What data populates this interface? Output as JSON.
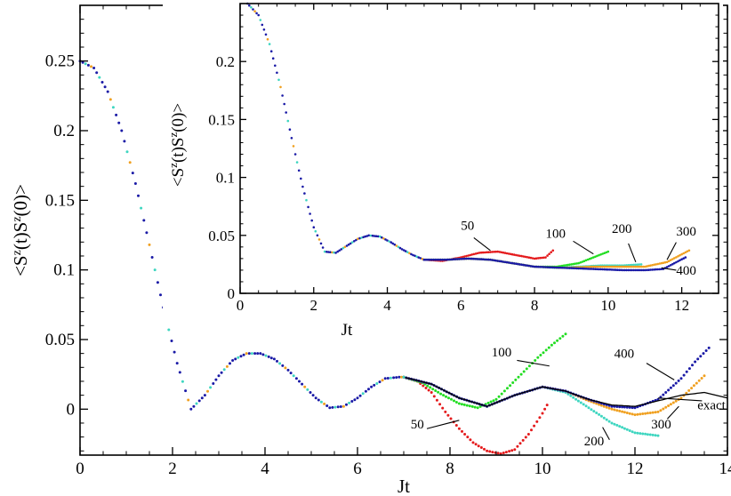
{
  "chart_data": [
    {
      "id": "main",
      "type": "line",
      "xlabel": "Jt",
      "ylabel": "<S^z(t)S^z(0)>",
      "xlim": [
        0,
        14
      ],
      "ylim": [
        -0.033,
        0.29
      ],
      "xticks": [
        0,
        2,
        4,
        6,
        8,
        10,
        12,
        14
      ],
      "yticks": [
        0,
        0.05,
        0.1,
        0.15,
        0.2,
        0.25
      ],
      "ytick_labels": [
        "0",
        "0.05",
        "0.1",
        "0.15",
        "0.2",
        "0.25"
      ],
      "grid": false,
      "common_curve": {
        "color": "#1a1aa6",
        "x_end": 7.0,
        "points": [
          [
            0,
            0.25
          ],
          [
            0.3,
            0.245
          ],
          [
            0.6,
            0.228
          ],
          [
            0.9,
            0.2
          ],
          [
            1.2,
            0.162
          ],
          [
            1.5,
            0.118
          ],
          [
            1.8,
            0.073
          ],
          [
            2.1,
            0.033
          ],
          [
            2.4,
            0.0
          ],
          [
            2.7,
            0.01
          ],
          [
            3.0,
            0.024
          ],
          [
            3.3,
            0.035
          ],
          [
            3.6,
            0.04
          ],
          [
            3.9,
            0.04
          ],
          [
            4.2,
            0.036
          ],
          [
            4.5,
            0.028
          ],
          [
            4.8,
            0.018
          ],
          [
            5.1,
            0.008
          ],
          [
            5.4,
            0.001
          ],
          [
            5.7,
            0.002
          ],
          [
            6.0,
            0.008
          ],
          [
            6.3,
            0.016
          ],
          [
            6.6,
            0.022
          ],
          [
            6.9,
            0.023
          ],
          [
            7.0,
            0.023
          ]
        ]
      },
      "series": [
        {
          "name": "50",
          "color": "#e41a1c",
          "points": [
            [
              7.0,
              0.023
            ],
            [
              7.3,
              0.02
            ],
            [
              7.6,
              0.012
            ],
            [
              7.9,
              -0.002
            ],
            [
              8.2,
              -0.014
            ],
            [
              8.5,
              -0.024
            ],
            [
              8.8,
              -0.03
            ],
            [
              9.1,
              -0.032
            ],
            [
              9.4,
              -0.029
            ],
            [
              9.7,
              -0.018
            ],
            [
              10.0,
              -0.003
            ],
            [
              10.1,
              0.003
            ]
          ]
        },
        {
          "name": "100",
          "color": "#22dd22",
          "points": [
            [
              7.0,
              0.023
            ],
            [
              7.4,
              0.019
            ],
            [
              7.8,
              0.011
            ],
            [
              8.2,
              0.004
            ],
            [
              8.6,
              0.001
            ],
            [
              9.0,
              0.007
            ],
            [
              9.3,
              0.017
            ],
            [
              9.6,
              0.027
            ],
            [
              9.9,
              0.037
            ],
            [
              10.2,
              0.046
            ],
            [
              10.5,
              0.054
            ]
          ]
        },
        {
          "name": "200",
          "color": "#3ed6c0",
          "points": [
            [
              7.0,
              0.023
            ],
            [
              7.6,
              0.018
            ],
            [
              8.2,
              0.008
            ],
            [
              8.8,
              0.002
            ],
            [
              9.4,
              0.01
            ],
            [
              10.0,
              0.016
            ],
            [
              10.5,
              0.012
            ],
            [
              11.0,
              0.001
            ],
            [
              11.5,
              -0.01
            ],
            [
              12.0,
              -0.017
            ],
            [
              12.5,
              -0.019
            ]
          ]
        },
        {
          "name": "300",
          "color": "#f0a020",
          "points": [
            [
              7.0,
              0.023
            ],
            [
              7.6,
              0.018
            ],
            [
              8.2,
              0.008
            ],
            [
              8.8,
              0.002
            ],
            [
              9.4,
              0.01
            ],
            [
              10.0,
              0.016
            ],
            [
              10.5,
              0.013
            ],
            [
              11.0,
              0.006
            ],
            [
              11.5,
              0.0
            ],
            [
              12.0,
              -0.004
            ],
            [
              12.5,
              -0.002
            ],
            [
              13.0,
              0.008
            ],
            [
              13.5,
              0.024
            ]
          ]
        },
        {
          "name": "400",
          "color": "#1a1aa6",
          "points": [
            [
              7.0,
              0.023
            ],
            [
              7.6,
              0.018
            ],
            [
              8.2,
              0.008
            ],
            [
              8.8,
              0.002
            ],
            [
              9.4,
              0.01
            ],
            [
              10.0,
              0.016
            ],
            [
              10.5,
              0.013
            ],
            [
              11.0,
              0.007
            ],
            [
              11.5,
              0.002
            ],
            [
              12.0,
              0.001
            ],
            [
              12.5,
              0.007
            ],
            [
              13.0,
              0.022
            ],
            [
              13.3,
              0.034
            ],
            [
              13.6,
              0.044
            ]
          ]
        },
        {
          "name": "exact",
          "color": "#000000",
          "points": [
            [
              7.0,
              0.023
            ],
            [
              7.6,
              0.018
            ],
            [
              8.2,
              0.008
            ],
            [
              8.8,
              0.002
            ],
            [
              9.4,
              0.01
            ],
            [
              10.0,
              0.016
            ],
            [
              10.5,
              0.013
            ],
            [
              11.0,
              0.007
            ],
            [
              11.5,
              0.003
            ],
            [
              12.0,
              0.002
            ],
            [
              12.5,
              0.006
            ],
            [
              13.0,
              0.01
            ],
            [
              13.5,
              0.012
            ],
            [
              14.0,
              0.008
            ]
          ]
        }
      ],
      "annotations": [
        {
          "text": "100",
          "x": 8.9,
          "y": 0.038,
          "lx1": 9.45,
          "ly1": 0.035,
          "lx2": 10.15,
          "ly2": 0.031
        },
        {
          "text": "400",
          "x": 11.55,
          "y": 0.037,
          "lx1": 12.25,
          "ly1": 0.033,
          "lx2": 12.85,
          "ly2": 0.021
        },
        {
          "text": "exact",
          "x": 13.35,
          "y": 0.0,
          "lx1": 13.45,
          "ly1": 0.006,
          "lx2": 12.5,
          "ly2": 0.008
        },
        {
          "text": "300",
          "x": 12.35,
          "y": -0.014,
          "lx1": 12.7,
          "ly1": -0.007,
          "lx2": 12.95,
          "ly2": 0.002
        },
        {
          "text": "50",
          "x": 7.15,
          "y": -0.014,
          "lx1": 7.5,
          "ly1": -0.014,
          "lx2": 8.2,
          "ly2": -0.008
        },
        {
          "text": "200",
          "x": 10.9,
          "y": -0.026,
          "lx1": 11.45,
          "ly1": -0.022,
          "lx2": 11.3,
          "ly2": -0.013
        }
      ]
    },
    {
      "id": "inset",
      "type": "line",
      "xlabel": "Jt",
      "ylabel": "<S^z(t)S^z(0)>",
      "xlim": [
        0,
        13
      ],
      "ylim": [
        0.0,
        0.25
      ],
      "xticks": [
        0,
        2,
        4,
        6,
        8,
        10,
        12
      ],
      "yticks": [
        0,
        0.05,
        0.1,
        0.15,
        0.2
      ],
      "ytick_labels": [
        "0",
        "0.05",
        "0.1",
        "0.15",
        "0.2"
      ],
      "grid": false,
      "common_curve": {
        "color": "#1a1aa6",
        "x_end": 5.0,
        "points": [
          [
            0.2,
            0.25
          ],
          [
            0.5,
            0.24
          ],
          [
            0.8,
            0.215
          ],
          [
            1.1,
            0.178
          ],
          [
            1.4,
            0.134
          ],
          [
            1.7,
            0.092
          ],
          [
            2.0,
            0.057
          ],
          [
            2.3,
            0.036
          ],
          [
            2.6,
            0.035
          ],
          [
            2.9,
            0.041
          ],
          [
            3.2,
            0.047
          ],
          [
            3.5,
            0.05
          ],
          [
            3.8,
            0.049
          ],
          [
            4.1,
            0.044
          ],
          [
            4.4,
            0.038
          ],
          [
            4.7,
            0.033
          ],
          [
            5.0,
            0.029
          ]
        ]
      },
      "series": [
        {
          "name": "50",
          "color": "#e41a1c",
          "points": [
            [
              5.0,
              0.029
            ],
            [
              5.5,
              0.028
            ],
            [
              6.0,
              0.031
            ],
            [
              6.5,
              0.035
            ],
            [
              7.0,
              0.036
            ],
            [
              7.5,
              0.033
            ],
            [
              8.0,
              0.03
            ],
            [
              8.3,
              0.031
            ],
            [
              8.5,
              0.037
            ]
          ]
        },
        {
          "name": "100",
          "color": "#22dd22",
          "points": [
            [
              5.0,
              0.029
            ],
            [
              5.6,
              0.029
            ],
            [
              6.2,
              0.03
            ],
            [
              6.8,
              0.029
            ],
            [
              7.4,
              0.026
            ],
            [
              8.0,
              0.023
            ],
            [
              8.6,
              0.023
            ],
            [
              9.2,
              0.026
            ],
            [
              9.6,
              0.031
            ],
            [
              10.0,
              0.036
            ]
          ]
        },
        {
          "name": "200",
          "color": "#3ed6c0",
          "points": [
            [
              5.0,
              0.029
            ],
            [
              5.6,
              0.029
            ],
            [
              6.2,
              0.03
            ],
            [
              6.8,
              0.029
            ],
            [
              7.4,
              0.026
            ],
            [
              8.0,
              0.023
            ],
            [
              8.6,
              0.022
            ],
            [
              9.2,
              0.023
            ],
            [
              9.8,
              0.024
            ],
            [
              10.4,
              0.024
            ],
            [
              10.9,
              0.025
            ]
          ]
        },
        {
          "name": "300",
          "color": "#f0a020",
          "points": [
            [
              5.0,
              0.029
            ],
            [
              5.6,
              0.029
            ],
            [
              6.2,
              0.03
            ],
            [
              6.8,
              0.029
            ],
            [
              7.4,
              0.026
            ],
            [
              8.0,
              0.023
            ],
            [
              8.8,
              0.022
            ],
            [
              9.6,
              0.023
            ],
            [
              10.4,
              0.023
            ],
            [
              11.0,
              0.023
            ],
            [
              11.6,
              0.027
            ],
            [
              12.2,
              0.037
            ]
          ]
        },
        {
          "name": "400",
          "color": "#1a1aa6",
          "points": [
            [
              5.0,
              0.029
            ],
            [
              5.6,
              0.029
            ],
            [
              6.2,
              0.03
            ],
            [
              6.8,
              0.029
            ],
            [
              7.4,
              0.026
            ],
            [
              8.0,
              0.023
            ],
            [
              8.8,
              0.022
            ],
            [
              9.6,
              0.021
            ],
            [
              10.4,
              0.02
            ],
            [
              11.0,
              0.02
            ],
            [
              11.5,
              0.021
            ],
            [
              12.1,
              0.031
            ]
          ]
        }
      ],
      "annotations": [
        {
          "text": "50",
          "x": 6.0,
          "y": 0.055,
          "lx1": 6.35,
          "ly1": 0.048,
          "lx2": 6.8,
          "ly2": 0.037
        },
        {
          "text": "100",
          "x": 8.3,
          "y": 0.048,
          "lx1": 9.05,
          "ly1": 0.045,
          "lx2": 9.6,
          "ly2": 0.034
        },
        {
          "text": "200",
          "x": 10.1,
          "y": 0.052,
          "lx1": 10.55,
          "ly1": 0.043,
          "lx2": 10.75,
          "ly2": 0.027
        },
        {
          "text": "300",
          "x": 11.85,
          "y": 0.05,
          "lx1": 11.85,
          "ly1": 0.044,
          "lx2": 11.6,
          "ly2": 0.029
        },
        {
          "text": "400",
          "x": 11.85,
          "y": 0.016,
          "lx1": 11.85,
          "ly1": 0.02,
          "lx2": 11.45,
          "ly2": 0.022
        }
      ]
    }
  ]
}
